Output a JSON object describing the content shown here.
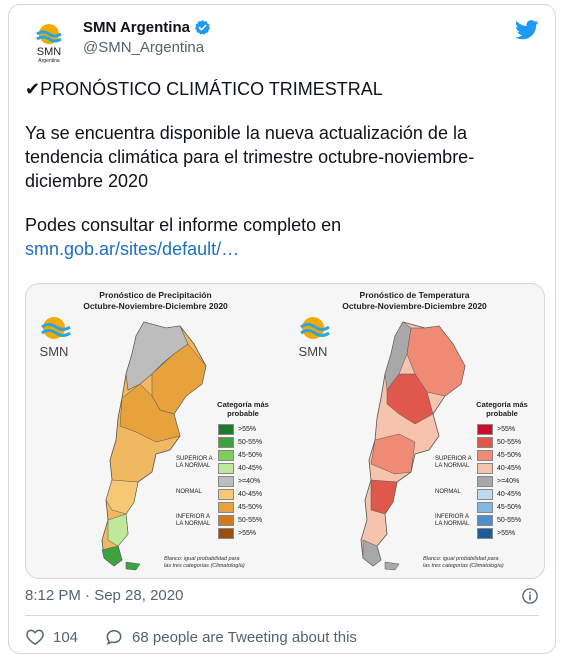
{
  "account": {
    "name": "SMN Argentina",
    "handle": "@SMN_Argentina",
    "avatar_text": "SMN",
    "avatar_subtext": "Argentina"
  },
  "tweet": {
    "headline": "✔PRONÓSTICO CLIMÁTICO TRIMESTRAL",
    "body": "Ya se encuentra disponible la nueva actualización de la tendencia climática para el trimestre octubre-noviembre-diciembre 2020",
    "cta": "Podes consultar el informe completo en",
    "link": "smn.gob.ar/sites/default/…"
  },
  "media": {
    "left": {
      "title_line1": "Pronóstico de Precipitación",
      "title_line2": "Octubre-Noviembre-Diciembre 2020",
      "logo_text": "SMN",
      "legend_head_line1": "Categoría más",
      "legend_head_line2": "probable",
      "legend": [
        {
          "label": ">55%",
          "color": "#1f7a2e"
        },
        {
          "label": "50-55%",
          "color": "#3da33f"
        },
        {
          "label": "45-50%",
          "color": "#7ccf5a"
        },
        {
          "label": "40-45%",
          "color": "#bfe89a"
        },
        {
          "label": ">=40%",
          "color": "#bdbdbd"
        },
        {
          "label": "40-45%",
          "color": "#f6c873"
        },
        {
          "label": "45-50%",
          "color": "#e8a23c"
        },
        {
          "label": "50-55%",
          "color": "#cf7a1f"
        },
        {
          "label": ">55%",
          "color": "#9a4e10"
        }
      ],
      "superior": "SUPERIOR A LA NORMAL",
      "normal": "NORMAL",
      "inferior": "INFERIOR A LA NORMAL",
      "footnote_line1": "Blanco: igual probabilidad para",
      "footnote_line2": "las tres categorías (Climatología)"
    },
    "right": {
      "title_line1": "Pronóstico de Temperatura",
      "title_line2": "Octubre-Noviembre-Diciembre 2020",
      "logo_text": "SMN",
      "legend_head_line1": "Categoría más",
      "legend_head_line2": "probable",
      "legend": [
        {
          "label": ">55%",
          "color": "#c8102e"
        },
        {
          "label": "50-55%",
          "color": "#e0584c"
        },
        {
          "label": "45-50%",
          "color": "#ef8a74"
        },
        {
          "label": "40-45%",
          "color": "#f6c3ad"
        },
        {
          "label": ">=40%",
          "color": "#a8a8a8"
        },
        {
          "label": "40-45%",
          "color": "#bfd9ee"
        },
        {
          "label": "45-50%",
          "color": "#86b7de"
        },
        {
          "label": "50-55%",
          "color": "#4f8fc6"
        },
        {
          "label": ">55%",
          "color": "#1e5c9c"
        }
      ],
      "superior": "SUPERIOR A LA NORMAL",
      "normal": "NORMAL",
      "inferior": "INFERIOR A LA NORMAL",
      "footnote_line1": "Blanco: igual probabilidad para",
      "footnote_line2": "las tres categorías (Climatología)"
    }
  },
  "meta": {
    "timestamp": "8:12 PM · Sep 28, 2020",
    "likes": "104",
    "tweeting": "68 people are Tweeting about this"
  },
  "colors": {
    "verified": "#1d9bf0",
    "twitter": "#1d9bf0",
    "link": "#1b6fc4"
  }
}
